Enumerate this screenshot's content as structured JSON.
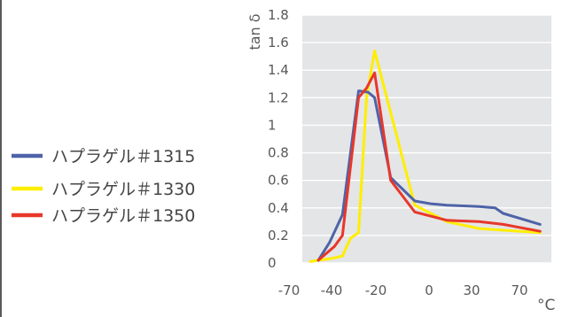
{
  "chart_data": {
    "type": "line",
    "ylabel": "tan δ",
    "x_unit": "°C",
    "xlim": [
      -70,
      85
    ],
    "ylim": [
      0,
      1.8
    ],
    "x_ticks": [
      -70,
      -40,
      -20,
      0,
      30,
      70
    ],
    "x_tick_labels": [
      "-70",
      "-40",
      "-20",
      "0",
      "30",
      "70"
    ],
    "y_ticks": [
      0,
      0.2,
      0.4,
      0.6,
      0.8,
      1,
      1.2,
      1.4,
      1.6,
      1.8
    ],
    "y_tick_labels": [
      "0",
      "0.2",
      "0.4",
      "0.6",
      "0.8",
      "1",
      "1.2",
      "1.4",
      "1.6",
      "1.8"
    ],
    "grid": true,
    "legend_position": "left",
    "series": [
      {
        "name": "ハプラゲル＃1315",
        "color": "#4e63a8",
        "x": [
          -60,
          -53,
          -45,
          -35,
          -29,
          -25,
          -15,
          0,
          10,
          20,
          40,
          50,
          55,
          78
        ],
        "y": [
          0.02,
          0.15,
          0.35,
          1.25,
          1.24,
          1.2,
          0.62,
          0.45,
          0.43,
          0.42,
          0.41,
          0.4,
          0.36,
          0.28
        ]
      },
      {
        "name": "ハプラゲル＃1330",
        "color": "#ffee00",
        "x": [
          -65,
          -60,
          -53,
          -45,
          -40,
          -35,
          -30,
          -25,
          0,
          20,
          40,
          78
        ],
        "y": [
          0.01,
          0.02,
          0.03,
          0.05,
          0.18,
          0.22,
          1.2,
          1.54,
          0.42,
          0.3,
          0.25,
          0.22
        ]
      },
      {
        "name": "ハプラゲル＃1350",
        "color": "#e8372a",
        "x": [
          -60,
          -50,
          -45,
          -35,
          -30,
          -25,
          -15,
          0,
          20,
          40,
          55,
          78
        ],
        "y": [
          0.02,
          0.12,
          0.2,
          1.2,
          1.27,
          1.38,
          0.6,
          0.37,
          0.31,
          0.3,
          0.28,
          0.23
        ]
      }
    ]
  }
}
